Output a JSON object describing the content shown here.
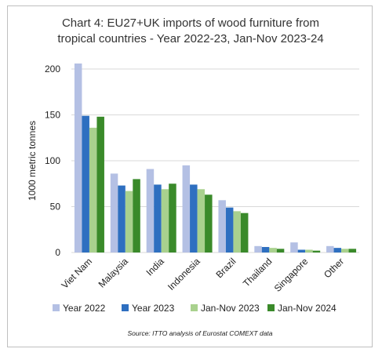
{
  "chart_data": {
    "type": "bar",
    "title_lines": [
      "Chart 4: EU27+UK imports of wood furniture from",
      "tropical countries - Year 2022-23, Jan-Nov 2023-24"
    ],
    "ylabel": "1000 metric tonnes",
    "ylim": [
      0,
      200
    ],
    "yticks": [
      "0",
      "50",
      "100",
      "150",
      "200"
    ],
    "ytick_values": [
      0,
      50,
      100,
      150,
      200
    ],
    "grid": true,
    "legend_position": "bottom",
    "categories": [
      "Viet Nam",
      "Malaysia",
      "India",
      "Indonesia",
      "Brazil",
      "Thailand",
      "Singapore",
      "Other"
    ],
    "series": [
      {
        "name": "Year 2022",
        "color": "#b4c0e4",
        "values": [
          206,
          86,
          91,
          95,
          57,
          7,
          11,
          7
        ]
      },
      {
        "name": "Year 2023",
        "color": "#2e6fc0",
        "values": [
          149,
          73,
          74,
          74,
          49,
          6,
          3,
          5
        ]
      },
      {
        "name": "Jan-Nov 2023",
        "color": "#a9d18e",
        "values": [
          136,
          67,
          69,
          69,
          45,
          5,
          3,
          4
        ]
      },
      {
        "name": "Jan-Nov 2024",
        "color": "#3a8a2a",
        "values": [
          148,
          80,
          75,
          63,
          43,
          4,
          2,
          4
        ]
      }
    ],
    "source": "Source: ITTO analysis of Eurostat COMEXT data"
  }
}
